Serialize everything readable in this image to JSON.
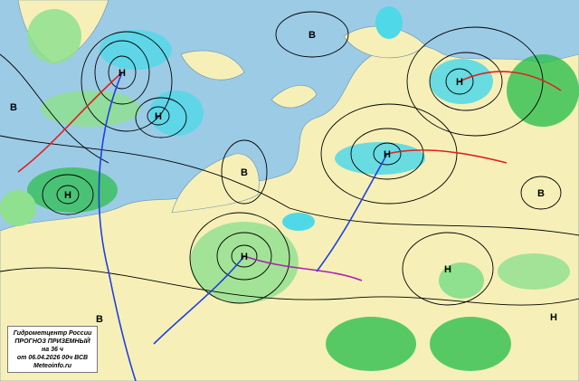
{
  "legend": {
    "organization": "Гидрометцентр России",
    "title": "ПРОГНОЗ ПРИЗЕМНЫЙ",
    "lead_time": "на 36 ч",
    "issued": "от 06.04.2026 00ч ВСВ",
    "site": "Meteoinfo.ru"
  },
  "colors": {
    "ocean": "#9ccbe6",
    "land": "#f6f0b8",
    "precip_light": "#8fe08f",
    "precip_heavy": "#2fbf4f",
    "snow": "#4fd8e8",
    "isobar": "#000000",
    "warm_front": "#e02020",
    "cold_front": "#2040e0"
  },
  "pressure_centers": [
    {
      "label": "Н",
      "type": "low"
    },
    {
      "label": "Н",
      "type": "low"
    },
    {
      "label": "В",
      "type": "high"
    },
    {
      "label": "В",
      "type": "high"
    },
    {
      "label": "В",
      "type": "high"
    },
    {
      "label": "Н",
      "type": "low"
    },
    {
      "label": "Н",
      "type": "low"
    },
    {
      "label": "Н",
      "type": "low"
    },
    {
      "label": "Н",
      "type": "low"
    },
    {
      "label": "В",
      "type": "high"
    },
    {
      "label": "Н",
      "type": "low"
    },
    {
      "label": "Н",
      "type": "low"
    },
    {
      "label": "В",
      "type": "high"
    }
  ]
}
